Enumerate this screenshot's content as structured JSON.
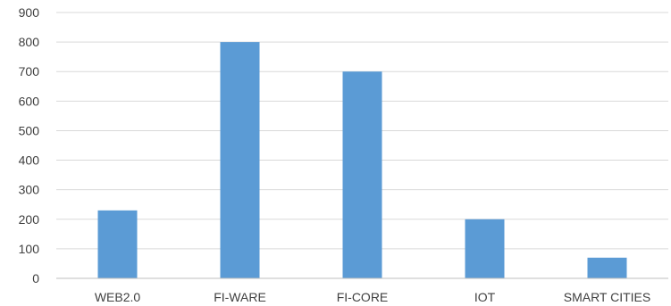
{
  "chart_data": {
    "type": "bar",
    "categories": [
      "WEB2.0",
      "FI-WARE",
      "FI-CORE",
      "IOT",
      "SMART CITIES"
    ],
    "values": [
      230,
      800,
      700,
      200,
      70
    ],
    "title": "",
    "xlabel": "",
    "ylabel": "",
    "ylim": [
      0,
      900
    ],
    "yticks": [
      "0",
      "100",
      "200",
      "300",
      "400",
      "500",
      "600",
      "700",
      "800",
      "900"
    ],
    "grid": true,
    "legend": "none",
    "bar_color": "#5b9bd5"
  }
}
